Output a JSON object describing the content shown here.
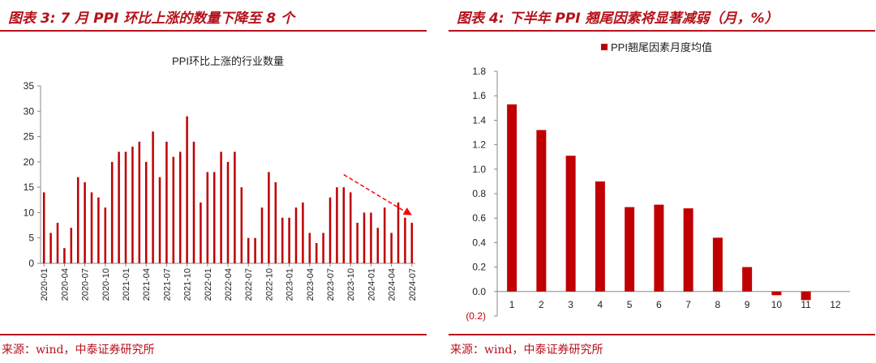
{
  "left_panel": {
    "title": "图表 3: 7 月 PPI 环比上涨的数量下降至 8 个",
    "source": "来源：wind，中泰证券研究所"
  },
  "right_panel": {
    "title": "图表 4: 下半年 PPI 翘尾因素将显著减弱（月，%）",
    "source": "来源：wind，中泰证券研究所"
  },
  "colors": {
    "accent": "#b5121b",
    "bar": "#c00000",
    "arrow": "#ff0000"
  },
  "chart_data": [
    {
      "type": "bar",
      "title": "PPI环比上涨的行业数量",
      "xlabel": "",
      "ylabel": "",
      "ylim": [
        0,
        35
      ],
      "yticks": [
        0,
        5,
        10,
        15,
        20,
        25,
        30,
        35
      ],
      "grid": false,
      "legend": "none",
      "x": [
        "2020-01",
        "2020-02",
        "2020-03",
        "2020-04",
        "2020-05",
        "2020-06",
        "2020-07",
        "2020-08",
        "2020-09",
        "2020-10",
        "2020-11",
        "2020-12",
        "2021-01",
        "2021-02",
        "2021-03",
        "2021-04",
        "2021-05",
        "2021-06",
        "2021-07",
        "2021-08",
        "2021-09",
        "2021-10",
        "2021-11",
        "2021-12",
        "2022-01",
        "2022-02",
        "2022-03",
        "2022-04",
        "2022-05",
        "2022-06",
        "2022-07",
        "2022-08",
        "2022-09",
        "2022-10",
        "2022-11",
        "2022-12",
        "2023-01",
        "2023-02",
        "2023-03",
        "2023-04",
        "2023-05",
        "2023-06",
        "2023-07",
        "2023-08",
        "2023-09",
        "2023-10",
        "2023-11",
        "2023-12",
        "2024-01",
        "2024-02",
        "2024-03",
        "2024-04",
        "2024-05",
        "2024-06",
        "2024-07"
      ],
      "x_tick_labels": [
        "2020-01",
        "2020-04",
        "2020-07",
        "2020-10",
        "2021-01",
        "2021-04",
        "2021-07",
        "2021-10",
        "2022-01",
        "2022-04",
        "2022-07",
        "2022-10",
        "2023-01",
        "2023-04",
        "2023-07",
        "2023-10",
        "2024-01",
        "2024-04",
        "2024-07"
      ],
      "values": [
        14,
        6,
        8,
        3,
        7,
        17,
        16,
        14,
        13,
        11,
        20,
        22,
        22,
        23,
        24,
        20,
        26,
        17,
        24,
        21,
        22,
        29,
        24,
        12,
        18,
        18,
        22,
        20,
        22,
        15,
        5,
        5,
        11,
        18,
        16,
        9,
        9,
        11,
        12,
        6,
        4,
        6,
        13,
        15,
        15,
        14,
        8,
        10,
        10,
        7,
        11,
        6,
        12,
        9,
        8
      ],
      "annotation": {
        "type": "trend-arrow",
        "color": "red",
        "style": "dashed",
        "from": [
          "2023-09",
          17.5
        ],
        "to": [
          "2024-07",
          9.5
        ]
      }
    },
    {
      "type": "bar",
      "title": "",
      "xlabel": "",
      "ylabel": "",
      "ylim": [
        -0.2,
        1.8
      ],
      "yticks": [
        -0.2,
        0.0,
        0.2,
        0.4,
        0.6,
        0.8,
        1.0,
        1.2,
        1.4,
        1.6,
        1.8
      ],
      "ytick_labels": [
        "(0.2)",
        "0.0",
        "0.2",
        "0.4",
        "0.6",
        "0.8",
        "1.0",
        "1.2",
        "1.4",
        "1.6",
        "1.8"
      ],
      "grid": false,
      "legend": "top-center",
      "categories": [
        "1",
        "2",
        "3",
        "4",
        "5",
        "6",
        "7",
        "8",
        "9",
        "10",
        "11",
        "12"
      ],
      "series": [
        {
          "name": "PPI翘尾因素月度均值",
          "values": [
            1.53,
            1.32,
            1.11,
            0.9,
            0.69,
            0.71,
            0.68,
            0.44,
            0.2,
            -0.03,
            -0.07,
            0.0
          ]
        }
      ]
    }
  ]
}
